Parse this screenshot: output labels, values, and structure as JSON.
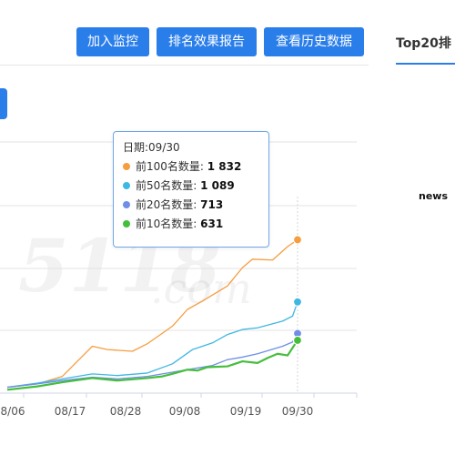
{
  "toolbar": {
    "add_monitor": "加入监控",
    "ranking_report": "排名效果报告",
    "history": "查看历史数据"
  },
  "right_panel": {
    "tab": "Top20排",
    "news": "news"
  },
  "watermark": {
    "digits": "5118",
    "suffix": ".com"
  },
  "tooltip": {
    "date_label": "日期:09/30",
    "rows": [
      {
        "label": "前100名数量:",
        "value": "1 832",
        "color": "#f59d3f"
      },
      {
        "label": "前50名数量:",
        "value": "1 089",
        "color": "#3fb7e3"
      },
      {
        "label": "前20名数量:",
        "value": "713",
        "color": "#6f8fe6"
      },
      {
        "label": "前10名数量:",
        "value": "631",
        "color": "#45be3c"
      }
    ]
  },
  "chart_data": {
    "type": "line",
    "x_ticks": [
      "8/06",
      "08/17",
      "08/28",
      "09/08",
      "09/19",
      "09/30"
    ],
    "ylim": [
      0,
      3000
    ],
    "grid": true,
    "series": [
      {
        "name": "前100名数量",
        "color": "#f59d3f",
        "points": [
          [
            0,
            70
          ],
          [
            6,
            110
          ],
          [
            11,
            200
          ],
          [
            17,
            560
          ],
          [
            20,
            520
          ],
          [
            25,
            500
          ],
          [
            28,
            590
          ],
          [
            33,
            800
          ],
          [
            36,
            1000
          ],
          [
            39,
            1100
          ],
          [
            44,
            1280
          ],
          [
            47,
            1500
          ],
          [
            49,
            1600
          ],
          [
            53,
            1590
          ],
          [
            56,
            1750
          ],
          [
            58,
            1832
          ]
        ]
      },
      {
        "name": "前50名数量",
        "color": "#3fb7e3",
        "points": [
          [
            0,
            70
          ],
          [
            6,
            120
          ],
          [
            11,
            170
          ],
          [
            17,
            230
          ],
          [
            22,
            210
          ],
          [
            28,
            240
          ],
          [
            33,
            350
          ],
          [
            37,
            520
          ],
          [
            41,
            600
          ],
          [
            44,
            700
          ],
          [
            47,
            760
          ],
          [
            50,
            780
          ],
          [
            55,
            860
          ],
          [
            57,
            920
          ],
          [
            58,
            1089
          ]
        ]
      },
      {
        "name": "前20名数量",
        "color": "#6f8fe6",
        "points": [
          [
            0,
            70
          ],
          [
            6,
            110
          ],
          [
            11,
            150
          ],
          [
            17,
            190
          ],
          [
            22,
            170
          ],
          [
            28,
            200
          ],
          [
            33,
            250
          ],
          [
            37,
            290
          ],
          [
            41,
            330
          ],
          [
            44,
            400
          ],
          [
            47,
            430
          ],
          [
            50,
            470
          ],
          [
            55,
            560
          ],
          [
            57,
            610
          ],
          [
            58,
            713
          ]
        ]
      },
      {
        "name": "前10名数量",
        "color": "#45be3c",
        "points": [
          [
            0,
            40
          ],
          [
            6,
            80
          ],
          [
            11,
            130
          ],
          [
            17,
            180
          ],
          [
            22,
            150
          ],
          [
            28,
            180
          ],
          [
            31,
            200
          ],
          [
            33,
            230
          ],
          [
            36,
            280
          ],
          [
            38,
            270
          ],
          [
            40,
            310
          ],
          [
            44,
            320
          ],
          [
            47,
            380
          ],
          [
            50,
            360
          ],
          [
            52,
            420
          ],
          [
            54,
            470
          ],
          [
            56,
            450
          ],
          [
            58,
            631
          ]
        ]
      }
    ]
  }
}
